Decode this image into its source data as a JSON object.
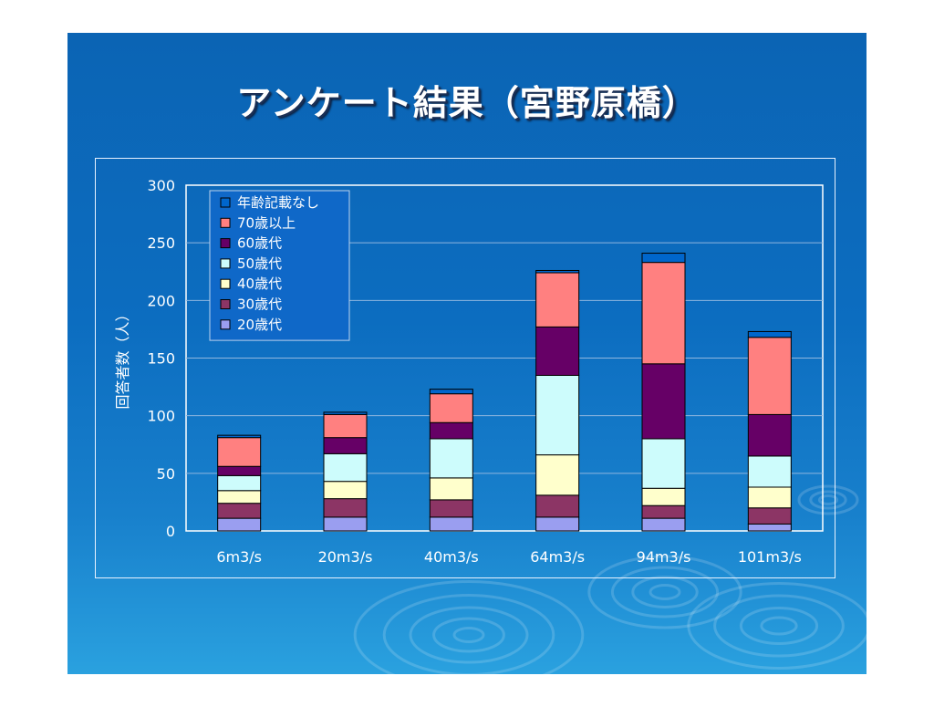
{
  "slide": {
    "title": "アンケート結果（宮野原橋）"
  },
  "chart_data": {
    "type": "bar",
    "stacked": true,
    "categories": [
      "6m3/s",
      "20m3/s",
      "40m3/s",
      "64m3/s",
      "94m3/s",
      "101m3/s"
    ],
    "ylabel": "回答者数（人）",
    "xlabel": "",
    "ylim": [
      0,
      300
    ],
    "yticks": [
      0,
      50,
      100,
      150,
      200,
      250,
      300
    ],
    "grid": true,
    "legend_position": "top-left",
    "legend_order": [
      "年齢記載なし",
      "70歳以上",
      "60歳代",
      "50歳代",
      "40歳代",
      "30歳代",
      "20歳代"
    ],
    "series": [
      {
        "name": "20歳代",
        "color": "#9a9ef0",
        "values": [
          11,
          12,
          12,
          12,
          11,
          6
        ]
      },
      {
        "name": "30歳代",
        "color": "#8c3565",
        "values": [
          13,
          16,
          15,
          19,
          11,
          14
        ]
      },
      {
        "name": "40歳代",
        "color": "#ffffcc",
        "values": [
          11,
          15,
          19,
          35,
          15,
          18
        ]
      },
      {
        "name": "50歳代",
        "color": "#cdfcfc",
        "values": [
          13,
          24,
          34,
          69,
          43,
          27
        ]
      },
      {
        "name": "60歳代",
        "color": "#660066",
        "values": [
          8,
          14,
          14,
          42,
          65,
          36
        ]
      },
      {
        "name": "70歳以上",
        "color": "#ff8080",
        "values": [
          25,
          20,
          25,
          47,
          88,
          67
        ]
      },
      {
        "name": "年齢記載なし",
        "color": "#0066cc",
        "values": [
          2,
          2,
          4,
          2,
          8,
          5
        ]
      }
    ]
  }
}
